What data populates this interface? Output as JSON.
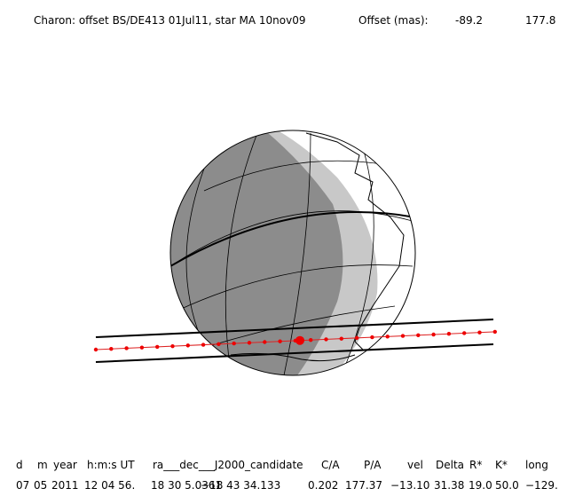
{
  "header": {
    "title": "Charon: offset BS/DE413 01Jul11, star MA 10nov09",
    "offset_label": "Offset (mas):",
    "offset_x": "-89.2",
    "offset_y": "177.8"
  },
  "table": {
    "columns": [
      "d",
      "m",
      "year",
      "h:m:s UT",
      "ra___dec___J2000_candidate",
      "C/A",
      "P/A",
      "vel",
      "Delta",
      "R*",
      "K*",
      "long"
    ],
    "row": [
      "07",
      "05",
      "2011",
      "12 04 56.",
      "18 30  5.0361",
      "−18 43  34.133",
      "0.202",
      "177.37",
      "−13.10",
      "31.38",
      "19.0",
      "50.0",
      "−129."
    ]
  }
}
